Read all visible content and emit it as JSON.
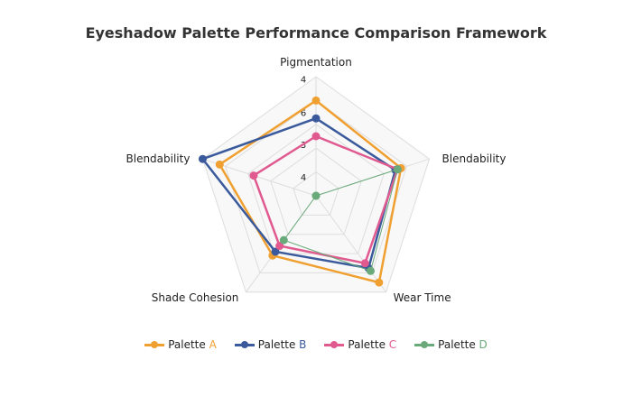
{
  "chart_data": {
    "type": "radar",
    "title": "Eyeshadow Palette Performance Comparison Framework",
    "axes": [
      "Pigmentation",
      "Blendability",
      "Wear Time",
      "Shade Cohesion",
      "Blendability"
    ],
    "tick_labels": [
      "4",
      "6",
      "3",
      "4"
    ],
    "r_range": [
      0,
      1
    ],
    "grid": true,
    "legend_position": "bottom",
    "series": [
      {
        "name": "Palette A",
        "name_prefix": "Palette ",
        "name_suffix": "A",
        "color": "#f0a030",
        "values": [
          0.8,
          0.75,
          0.9,
          0.62,
          0.85
        ]
      },
      {
        "name": "Palette B",
        "name_prefix": "Palette ",
        "name_suffix": "B",
        "color": "#3a5a9c",
        "values": [
          0.65,
          0.7,
          0.75,
          0.58,
          1.0
        ]
      },
      {
        "name": "Palette C",
        "name_prefix": "Palette ",
        "name_suffix": "C",
        "color": "#e05a90",
        "values": [
          0.5,
          0.72,
          0.7,
          0.52,
          0.55
        ]
      },
      {
        "name": "Palette D",
        "name_prefix": "Palette ",
        "name_suffix": "D",
        "color": "#6aaa7a",
        "values": [
          0.0,
          0.72,
          0.78,
          0.46,
          0.0
        ]
      }
    ]
  }
}
